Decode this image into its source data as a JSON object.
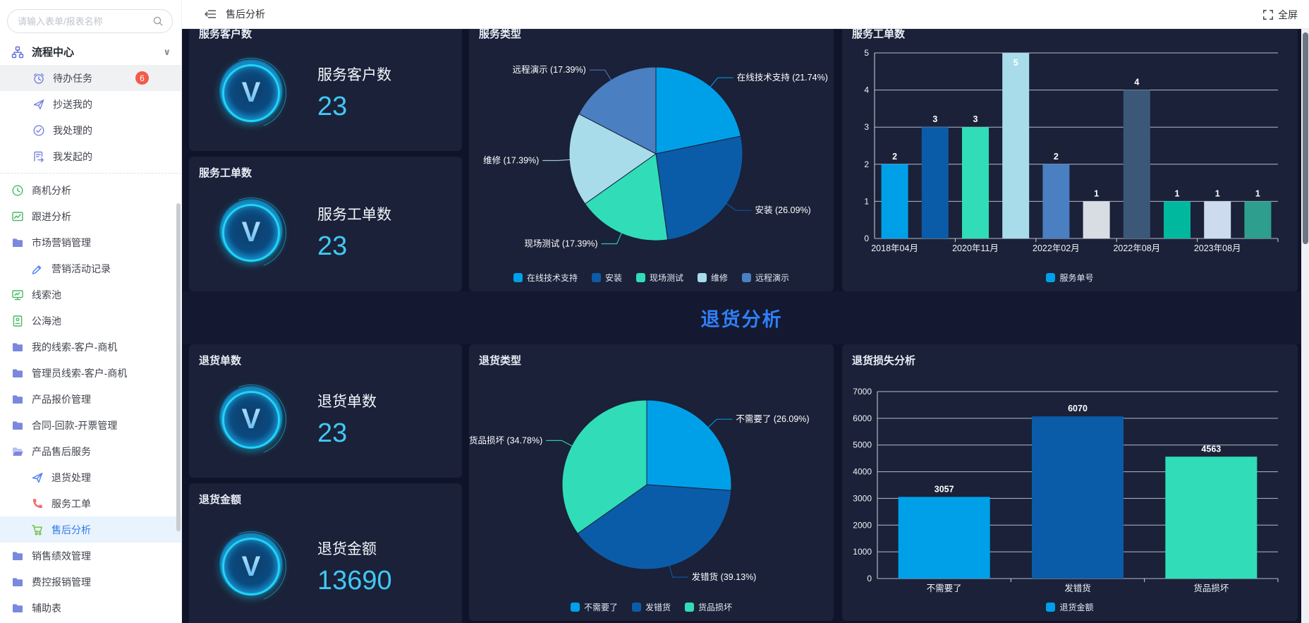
{
  "topbar": {
    "title": "售后分析",
    "fullscreen_label": "全屏"
  },
  "sidebar": {
    "search_placeholder": "请输入表单/报表名称",
    "items": [
      {
        "label": "流程中心",
        "icon": "sitemap-icon",
        "color": "#5f6fd6",
        "level": 0,
        "root": true,
        "chevron": "∨"
      },
      {
        "label": "待办任务",
        "icon": "alarm-clock-icon",
        "color": "#7583dd",
        "level": 1,
        "grayed": true,
        "badge": "6"
      },
      {
        "label": "抄送我的",
        "icon": "paper-plane-icon",
        "color": "#7583dd",
        "level": 1
      },
      {
        "label": "我处理的",
        "icon": "check-circle-icon",
        "color": "#7583dd",
        "level": 1
      },
      {
        "label": "我发起的",
        "icon": "doc-send-icon",
        "color": "#7583dd",
        "level": 1,
        "divider_after": true
      },
      {
        "label": "商机分析",
        "icon": "clock-icon",
        "color": "#49b866",
        "level": 0
      },
      {
        "label": "跟进分析",
        "icon": "line-chart-icon",
        "color": "#49b866",
        "level": 0
      },
      {
        "label": "市场营销管理",
        "icon": "folder-icon",
        "color": "#7a88dd",
        "level": 0
      },
      {
        "label": "营销活动记录",
        "icon": "pen-icon",
        "color": "#4d7df2",
        "level": 2
      },
      {
        "label": "线索池",
        "icon": "monitor-icon",
        "color": "#49b866",
        "level": 0
      },
      {
        "label": "公海池",
        "icon": "id-book-icon",
        "color": "#49b866",
        "level": 0
      },
      {
        "label": "我的线索-客户-商机",
        "icon": "folder-icon",
        "color": "#7a88dd",
        "level": 0
      },
      {
        "label": "管理员线索-客户-商机",
        "icon": "folder-icon",
        "color": "#7a88dd",
        "level": 0
      },
      {
        "label": "产品报价管理",
        "icon": "folder-icon",
        "color": "#7a88dd",
        "level": 0
      },
      {
        "label": "合同-回款-开票管理",
        "icon": "folder-icon",
        "color": "#7a88dd",
        "level": 0
      },
      {
        "label": "产品售后服务",
        "icon": "folder-open-icon",
        "color": "#7a88dd",
        "level": 0
      },
      {
        "label": "退货处理",
        "icon": "paper-plane-icon",
        "color": "#4d7df2",
        "level": 2
      },
      {
        "label": "服务工单",
        "icon": "phone-icon",
        "color": "#f56c6c",
        "level": 2
      },
      {
        "label": "售后分析",
        "icon": "cart-icon",
        "color": "#67c23a",
        "level": 2,
        "active": true
      },
      {
        "label": "销售绩效管理",
        "icon": "folder-icon",
        "color": "#7a88dd",
        "level": 0
      },
      {
        "label": "费控报销管理",
        "icon": "folder-icon",
        "color": "#7a88dd",
        "level": 0
      },
      {
        "label": "辅助表",
        "icon": "folder-icon",
        "color": "#7a88dd",
        "level": 0
      }
    ]
  },
  "section": {
    "title": "退货分析"
  },
  "kpi_cards": [
    {
      "card_title": "服务客户数",
      "label": "服务客户数",
      "value": "23"
    },
    {
      "card_title": "服务工单数",
      "label": "服务工单数",
      "value": "23"
    },
    {
      "card_title": "退货单数",
      "label": "退货单数",
      "value": "23"
    },
    {
      "card_title": "退货金额",
      "label": "退货金额",
      "value": "13690"
    }
  ],
  "theme": {
    "dashboard_bg": "#10142a",
    "card_bg": "#1a2138",
    "kpi_value_color": "#41c8f5",
    "section_title_color": "#2e80f7",
    "accent_blue": "#00a0e9",
    "grid_color": "#cdd6e8"
  },
  "chart_data": [
    {
      "id": "service-type-pie",
      "type": "pie",
      "title": "服务类型",
      "slices": [
        {
          "label": "在线技术支持",
          "pct": 21.74,
          "color": "#00a0e9"
        },
        {
          "label": "安装",
          "pct": 26.09,
          "color": "#0b5ca8"
        },
        {
          "label": "现场测试",
          "pct": 17.39,
          "color": "#30ddb8"
        },
        {
          "label": "维修",
          "pct": 17.39,
          "color": "#a8dcea"
        },
        {
          "label": "远程演示",
          "pct": 17.39,
          "color": "#4a7fc1"
        }
      ],
      "legend_position": "bottom"
    },
    {
      "id": "monthly-work-orders-bar",
      "type": "bar",
      "title": "服务工单数",
      "values": [
        2,
        3,
        3,
        5,
        2,
        1,
        4,
        1,
        1,
        1
      ],
      "bar_colors": [
        "#00a0e9",
        "#0b5ca8",
        "#30ddb8",
        "#a8dcea",
        "#4a7fc1",
        "#d8dde3",
        "#3c5878",
        "#00b89e",
        "#ccdcee",
        "#2e9e8e"
      ],
      "x_tick_labels": [
        "2018年04月",
        "",
        "2020年11月",
        "",
        "2022年02月",
        "",
        "2022年08月",
        "",
        "2023年08月",
        ""
      ],
      "ylim": [
        0,
        5
      ],
      "ystep": 1,
      "grid": true,
      "legend": [
        {
          "label": "服务单号",
          "color": "#00a0e9"
        }
      ],
      "legend_position": "bottom"
    },
    {
      "id": "return-type-pie",
      "type": "pie",
      "title": "退货类型",
      "slices": [
        {
          "label": "不需要了",
          "pct": 26.09,
          "color": "#00a0e9"
        },
        {
          "label": "发错货",
          "pct": 39.13,
          "color": "#0b5ca8"
        },
        {
          "label": "货品损坏",
          "pct": 34.78,
          "color": "#30ddb8"
        }
      ],
      "legend_position": "bottom"
    },
    {
      "id": "return-loss-bar",
      "type": "bar",
      "title": "退货损失分析",
      "categories": [
        "不需要了",
        "发错货",
        "货品损坏"
      ],
      "values": [
        3057,
        6070,
        4563
      ],
      "bar_colors": [
        "#00a0e9",
        "#0b5ca8",
        "#30ddb8"
      ],
      "x_tick_labels": [
        "不需要了",
        "发错货",
        "货品损坏"
      ],
      "ylim": [
        0,
        7000
      ],
      "ystep": 1000,
      "grid": true,
      "legend": [
        {
          "label": "退货金额",
          "color": "#00a0e9"
        }
      ],
      "legend_position": "bottom"
    }
  ]
}
